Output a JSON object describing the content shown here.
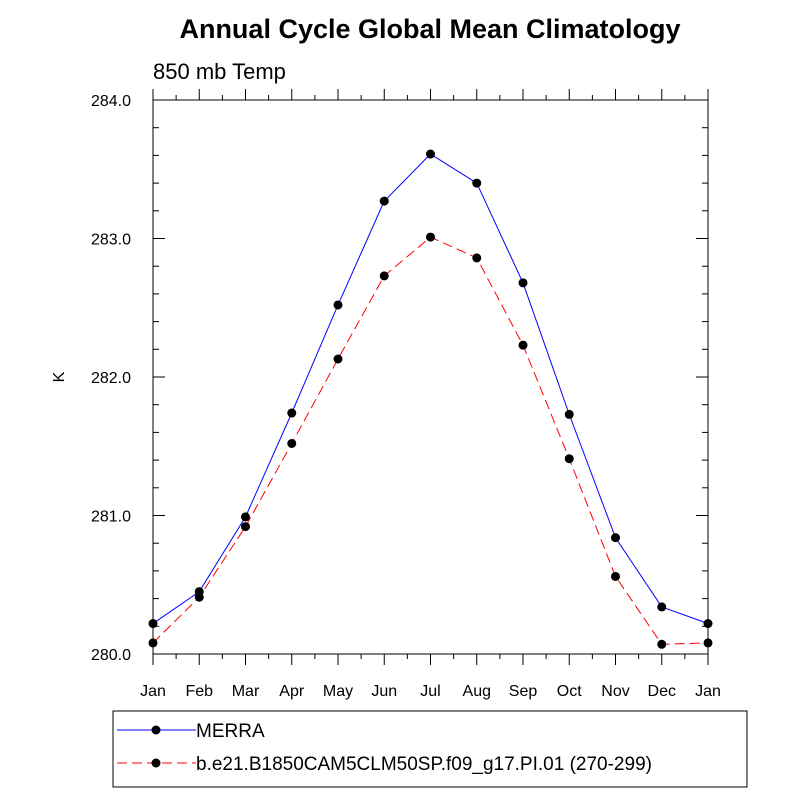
{
  "chart_data": {
    "type": "line",
    "title": "Annual Cycle Global Mean Climatology",
    "subtitle": "850 mb Temp",
    "xlabel": "",
    "ylabel": "K",
    "categories": [
      "Jan",
      "Feb",
      "Mar",
      "Apr",
      "May",
      "Jun",
      "Jul",
      "Aug",
      "Sep",
      "Oct",
      "Nov",
      "Dec",
      "Jan"
    ],
    "ylim": [
      280.0,
      284.0
    ],
    "yticks": [
      "280.0",
      "281.0",
      "282.0",
      "283.0",
      "284.0"
    ],
    "grid": false,
    "legend_position": "bottom",
    "series": [
      {
        "name": "MERRA",
        "color": "#0000ff",
        "dash": "solid",
        "values": [
          280.22,
          280.45,
          280.99,
          281.74,
          282.52,
          283.27,
          283.61,
          283.4,
          282.68,
          281.73,
          280.84,
          280.34,
          280.22
        ]
      },
      {
        "name": "b.e21.B1850CAM5CLM50SP.f09_g17.PI.01 (270-299)",
        "color": "#ff0000",
        "dash": "dashed",
        "values": [
          280.08,
          280.41,
          280.92,
          281.52,
          282.13,
          282.73,
          283.01,
          282.86,
          282.23,
          281.41,
          280.56,
          280.07,
          280.08
        ]
      }
    ]
  }
}
